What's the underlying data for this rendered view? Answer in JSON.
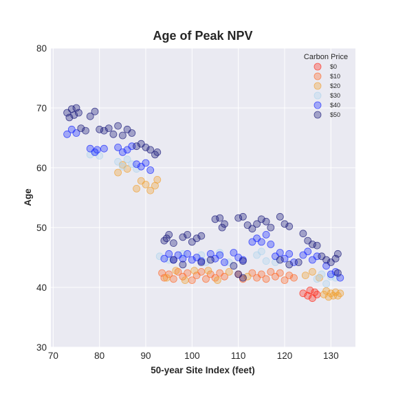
{
  "chart_data": {
    "type": "scatter",
    "title": "Age of Peak NPV",
    "xlabel": "50-year Site Index (feet)",
    "ylabel": "Age",
    "xlim": [
      69.5,
      135.3
    ],
    "ylim": [
      30,
      80
    ],
    "xticks": [
      "70",
      "80",
      "90",
      "100",
      "110",
      "120",
      "130"
    ],
    "yticks": [
      "30",
      "40",
      "50",
      "60",
      "70",
      "80"
    ],
    "grid": true,
    "legend": {
      "title": "Carbon Price",
      "placement": "top-right"
    },
    "series": [
      {
        "name": "$0",
        "color": "#ff2a1a",
        "points": [
          [
            124,
            39.0
          ],
          [
            125,
            38.6
          ],
          [
            125.5,
            39.5
          ],
          [
            126,
            38.2
          ],
          [
            126.5,
            39.2
          ],
          [
            127,
            38.8
          ]
        ]
      },
      {
        "name": "$10",
        "color": "#ff6a2a",
        "points": [
          [
            93.5,
            42.4
          ],
          [
            94,
            41.6
          ],
          [
            95,
            42.2
          ],
          [
            96,
            41.4
          ],
          [
            97,
            42.6
          ],
          [
            98,
            41.8
          ],
          [
            99,
            42.4
          ],
          [
            100,
            41.2
          ],
          [
            101,
            42.0
          ],
          [
            102,
            42.6
          ],
          [
            103,
            41.4
          ],
          [
            104,
            42.2
          ],
          [
            105,
            41.6
          ],
          [
            106,
            42.4
          ],
          [
            107,
            41.8
          ],
          [
            110,
            42.2
          ],
          [
            111,
            41.4
          ],
          [
            113,
            42.4
          ],
          [
            114,
            41.6
          ],
          [
            115,
            42.2
          ],
          [
            116,
            41.4
          ],
          [
            117,
            42.6
          ],
          [
            118,
            41.8
          ],
          [
            119,
            42.4
          ],
          [
            120,
            41.2
          ],
          [
            121,
            42.0
          ],
          [
            122,
            41.6
          ]
        ]
      },
      {
        "name": "$20",
        "color": "#f0a030",
        "points": [
          [
            84,
            59.2
          ],
          [
            85,
            60.5
          ],
          [
            86,
            59.8
          ],
          [
            88,
            56.5
          ],
          [
            89,
            57.8
          ],
          [
            90,
            57.2
          ],
          [
            91,
            56.2
          ],
          [
            92,
            57.0
          ],
          [
            92.5,
            58.0
          ],
          [
            94.5,
            41.6
          ],
          [
            96.5,
            42.8
          ],
          [
            98.5,
            41.2
          ],
          [
            100.5,
            42.8
          ],
          [
            103.5,
            42.8
          ],
          [
            105.5,
            41.2
          ],
          [
            108,
            42.6
          ],
          [
            112,
            41.8
          ],
          [
            124.5,
            42.0
          ],
          [
            126,
            42.6
          ],
          [
            127.5,
            41.6
          ],
          [
            128.5,
            38.8
          ],
          [
            129,
            39.4
          ],
          [
            129.5,
            38.4
          ],
          [
            130,
            39.0
          ],
          [
            130.5,
            38.6
          ],
          [
            131,
            39.2
          ],
          [
            131.5,
            38.6
          ],
          [
            132,
            39.0
          ]
        ]
      },
      {
        "name": "$30",
        "color": "#aed4ee",
        "points": [
          [
            78,
            62.2
          ],
          [
            79,
            62.6
          ],
          [
            80,
            62.0
          ],
          [
            84,
            61.0
          ],
          [
            85,
            60.2
          ],
          [
            86,
            61.4
          ],
          [
            87,
            60.6
          ],
          [
            88,
            59.8
          ],
          [
            93,
            45.2
          ],
          [
            95,
            44.6
          ],
          [
            98,
            45.6
          ],
          [
            102,
            45.4
          ],
          [
            103,
            44.2
          ],
          [
            106,
            45.8
          ],
          [
            108,
            44.2
          ],
          [
            114,
            45.4
          ],
          [
            115,
            46.0
          ],
          [
            116,
            44.4
          ],
          [
            118,
            44.2
          ],
          [
            127,
            41.4
          ],
          [
            128,
            42.2
          ],
          [
            129,
            40.6
          ],
          [
            130,
            41.8
          ],
          [
            131,
            41.6
          ]
        ]
      },
      {
        "name": "$40",
        "color": "#1a2aff",
        "points": [
          [
            73,
            65.6
          ],
          [
            74,
            66.4
          ],
          [
            75,
            65.8
          ],
          [
            78,
            63.2
          ],
          [
            79,
            62.6
          ],
          [
            79.5,
            63.0
          ],
          [
            81,
            63.2
          ],
          [
            84,
            63.4
          ],
          [
            85,
            62.6
          ],
          [
            86,
            63.0
          ],
          [
            87,
            63.6
          ],
          [
            88,
            60.6
          ],
          [
            89,
            60.2
          ],
          [
            90,
            60.8
          ],
          [
            91,
            59.6
          ],
          [
            94,
            44.8
          ],
          [
            95,
            45.6
          ],
          [
            96,
            44.6
          ],
          [
            97,
            45.4
          ],
          [
            98,
            44.8
          ],
          [
            99,
            45.6
          ],
          [
            100,
            44.6
          ],
          [
            101,
            45.0
          ],
          [
            102,
            44.4
          ],
          [
            104,
            45.6
          ],
          [
            105,
            44.8
          ],
          [
            106,
            45.4
          ],
          [
            107,
            44.2
          ],
          [
            109,
            45.8
          ],
          [
            110,
            45.0
          ],
          [
            111,
            44.6
          ],
          [
            113,
            47.6
          ],
          [
            114,
            48.2
          ],
          [
            115,
            47.6
          ],
          [
            116,
            48.8
          ],
          [
            117,
            47.2
          ],
          [
            118,
            45.2
          ],
          [
            119,
            45.8
          ],
          [
            120,
            44.8
          ],
          [
            121,
            45.6
          ],
          [
            122,
            44.2
          ],
          [
            124,
            45.4
          ],
          [
            125,
            46.0
          ],
          [
            126,
            44.6
          ],
          [
            127,
            45.2
          ],
          [
            129,
            43.6
          ],
          [
            130,
            42.2
          ],
          [
            131,
            42.6
          ],
          [
            132,
            41.6
          ]
        ]
      },
      {
        "name": "$50",
        "color": "#1a1a7a",
        "points": [
          [
            73,
            69.2
          ],
          [
            73.5,
            68.4
          ],
          [
            74,
            69.8
          ],
          [
            74.5,
            68.8
          ],
          [
            75,
            70.0
          ],
          [
            75.5,
            69.2
          ],
          [
            76,
            66.6
          ],
          [
            77,
            66.2
          ],
          [
            78,
            68.6
          ],
          [
            79,
            69.4
          ],
          [
            80,
            66.4
          ],
          [
            81,
            66.2
          ],
          [
            82,
            66.6
          ],
          [
            83,
            65.6
          ],
          [
            84,
            67.0
          ],
          [
            85,
            65.4
          ],
          [
            86,
            66.4
          ],
          [
            87,
            65.8
          ],
          [
            88,
            63.6
          ],
          [
            89,
            64.0
          ],
          [
            90,
            63.4
          ],
          [
            91,
            63.0
          ],
          [
            92,
            62.2
          ],
          [
            92.5,
            62.6
          ],
          [
            94,
            47.8
          ],
          [
            94.5,
            48.2
          ],
          [
            95,
            48.8
          ],
          [
            96,
            47.4
          ],
          [
            98,
            48.4
          ],
          [
            99,
            48.8
          ],
          [
            100,
            47.6
          ],
          [
            101,
            48.2
          ],
          [
            102,
            48.6
          ],
          [
            105,
            51.4
          ],
          [
            106,
            51.6
          ],
          [
            107,
            50.6
          ],
          [
            106.5,
            50.0
          ],
          [
            110,
            51.6
          ],
          [
            111,
            51.8
          ],
          [
            112,
            50.4
          ],
          [
            113,
            49.8
          ],
          [
            114,
            50.6
          ],
          [
            115,
            51.4
          ],
          [
            116,
            51.0
          ],
          [
            117,
            50.0
          ],
          [
            119,
            51.8
          ],
          [
            120,
            50.6
          ],
          [
            121,
            50.2
          ],
          [
            124,
            49.0
          ],
          [
            125,
            47.8
          ],
          [
            126,
            47.2
          ],
          [
            127,
            47.0
          ],
          [
            96,
            44.6
          ],
          [
            98,
            43.8
          ],
          [
            102,
            44.2
          ],
          [
            104,
            44.6
          ],
          [
            109,
            43.6
          ],
          [
            111,
            44.4
          ],
          [
            119,
            44.6
          ],
          [
            121,
            43.8
          ],
          [
            123,
            44.2
          ],
          [
            128,
            45.2
          ],
          [
            129,
            44.6
          ],
          [
            130,
            44.2
          ],
          [
            131,
            44.8
          ],
          [
            131.5,
            45.6
          ],
          [
            110,
            42.2
          ],
          [
            111,
            41.6
          ],
          [
            131.5,
            42.4
          ]
        ]
      }
    ]
  }
}
